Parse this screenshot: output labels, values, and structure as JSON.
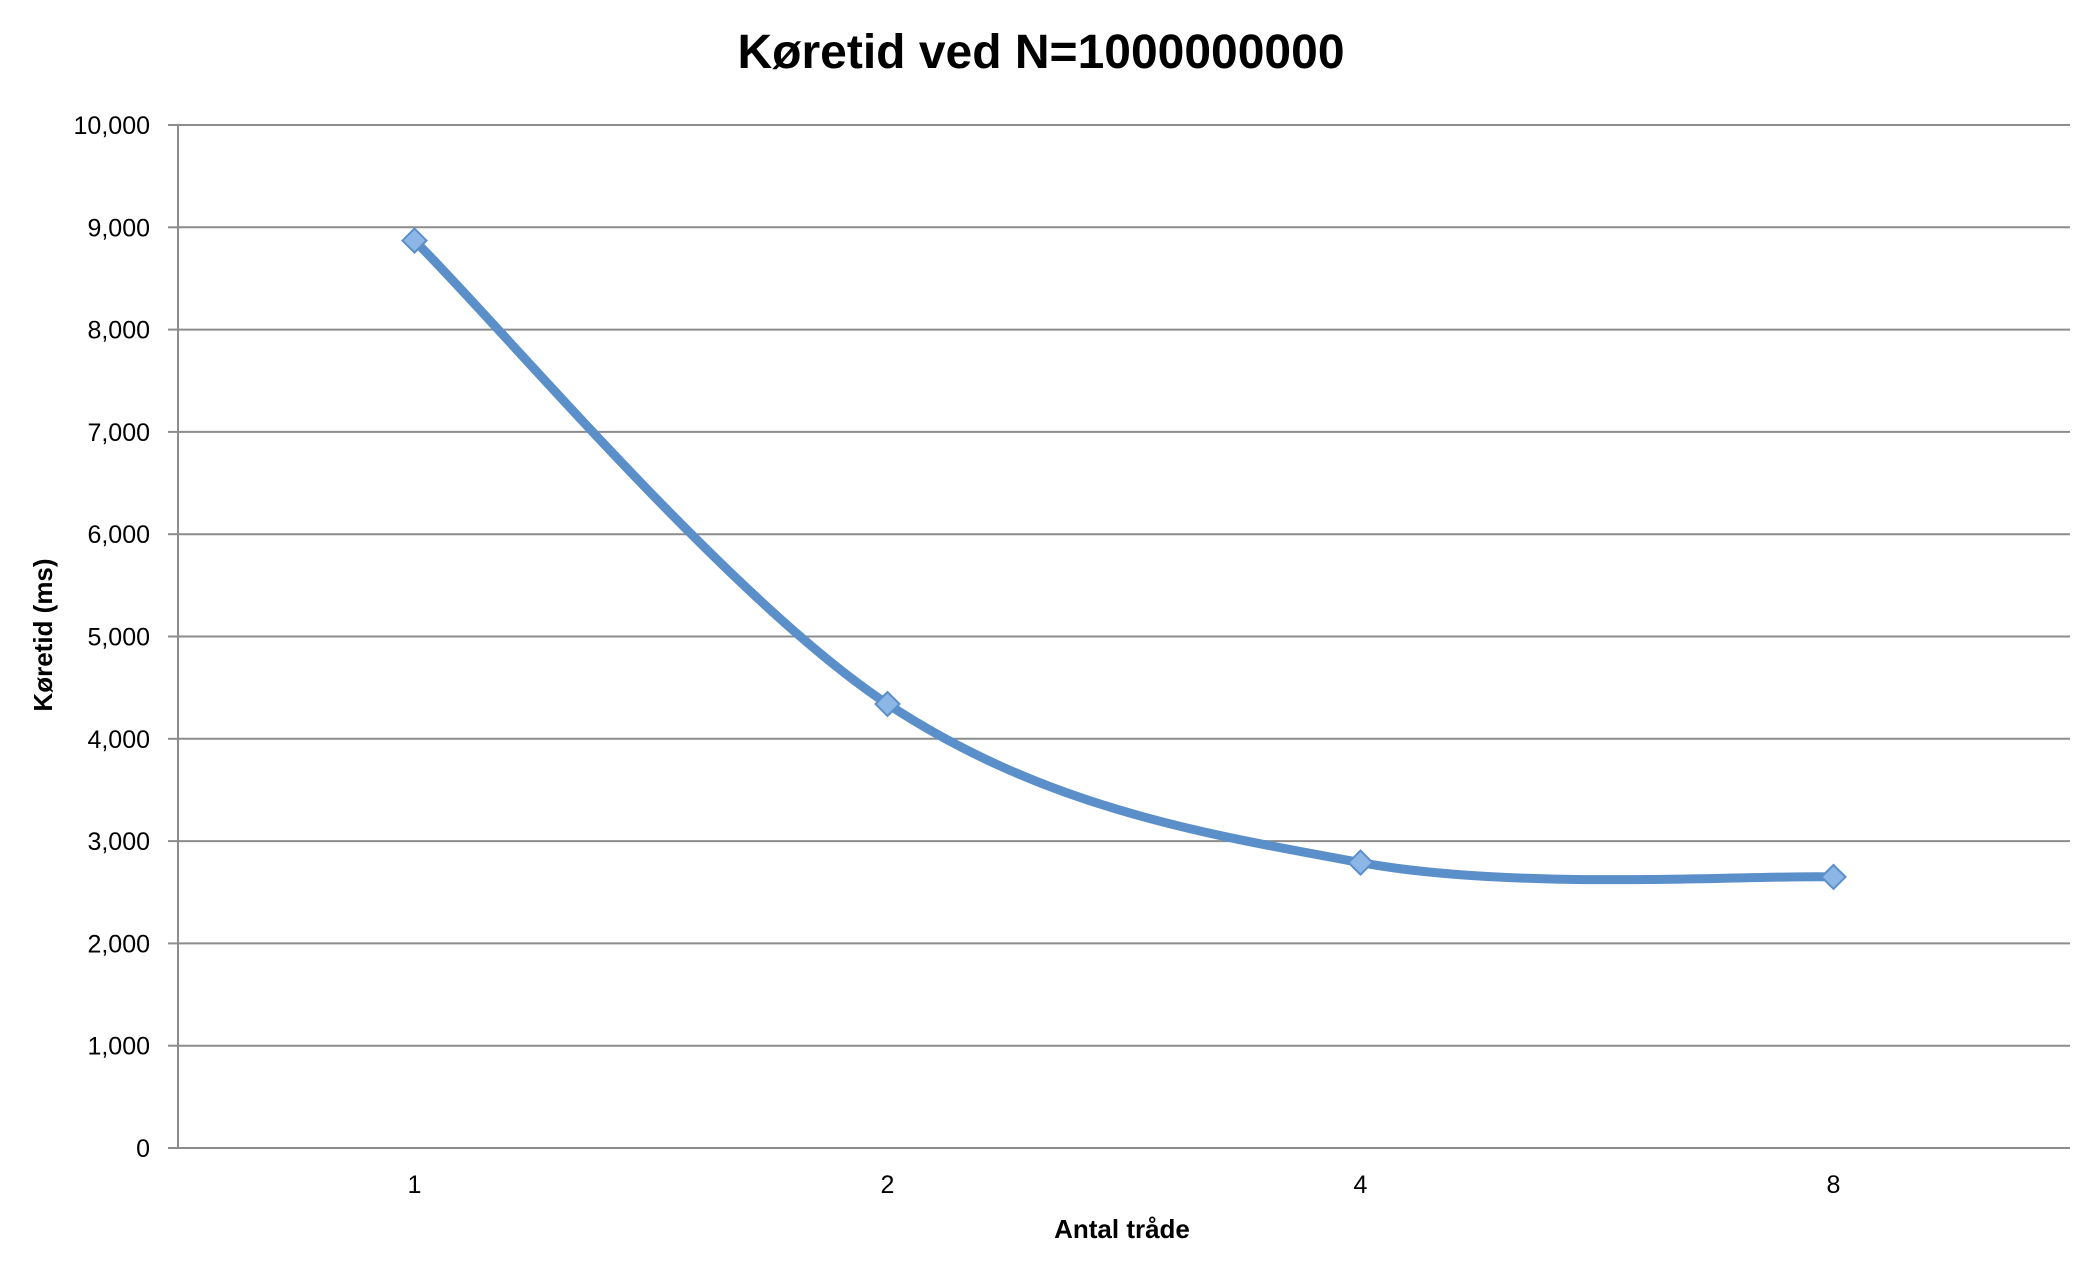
{
  "chart_data": {
    "type": "line",
    "title": "Køretid ved N=1000000000",
    "xlabel": "Antal tråde",
    "ylabel": "Køretid (ms)",
    "categories": [
      "1",
      "2",
      "4",
      "8"
    ],
    "series": [
      {
        "values": [
          8870,
          4340,
          2790,
          2650
        ]
      }
    ],
    "ylim": [
      0,
      10000
    ],
    "yticks": [
      "0",
      "1,000",
      "2,000",
      "3,000",
      "4,000",
      "5,000",
      "6,000",
      "7,000",
      "8,000",
      "9,000",
      "10,000"
    ],
    "ytick_values": [
      0,
      1000,
      2000,
      3000,
      4000,
      5000,
      6000,
      7000,
      8000,
      9000,
      10000
    ],
    "grid": true,
    "smooth": true,
    "marker": "diamond",
    "legend": "none",
    "line_color": "#5b8fc9",
    "marker_color": "#8cb6e6"
  }
}
